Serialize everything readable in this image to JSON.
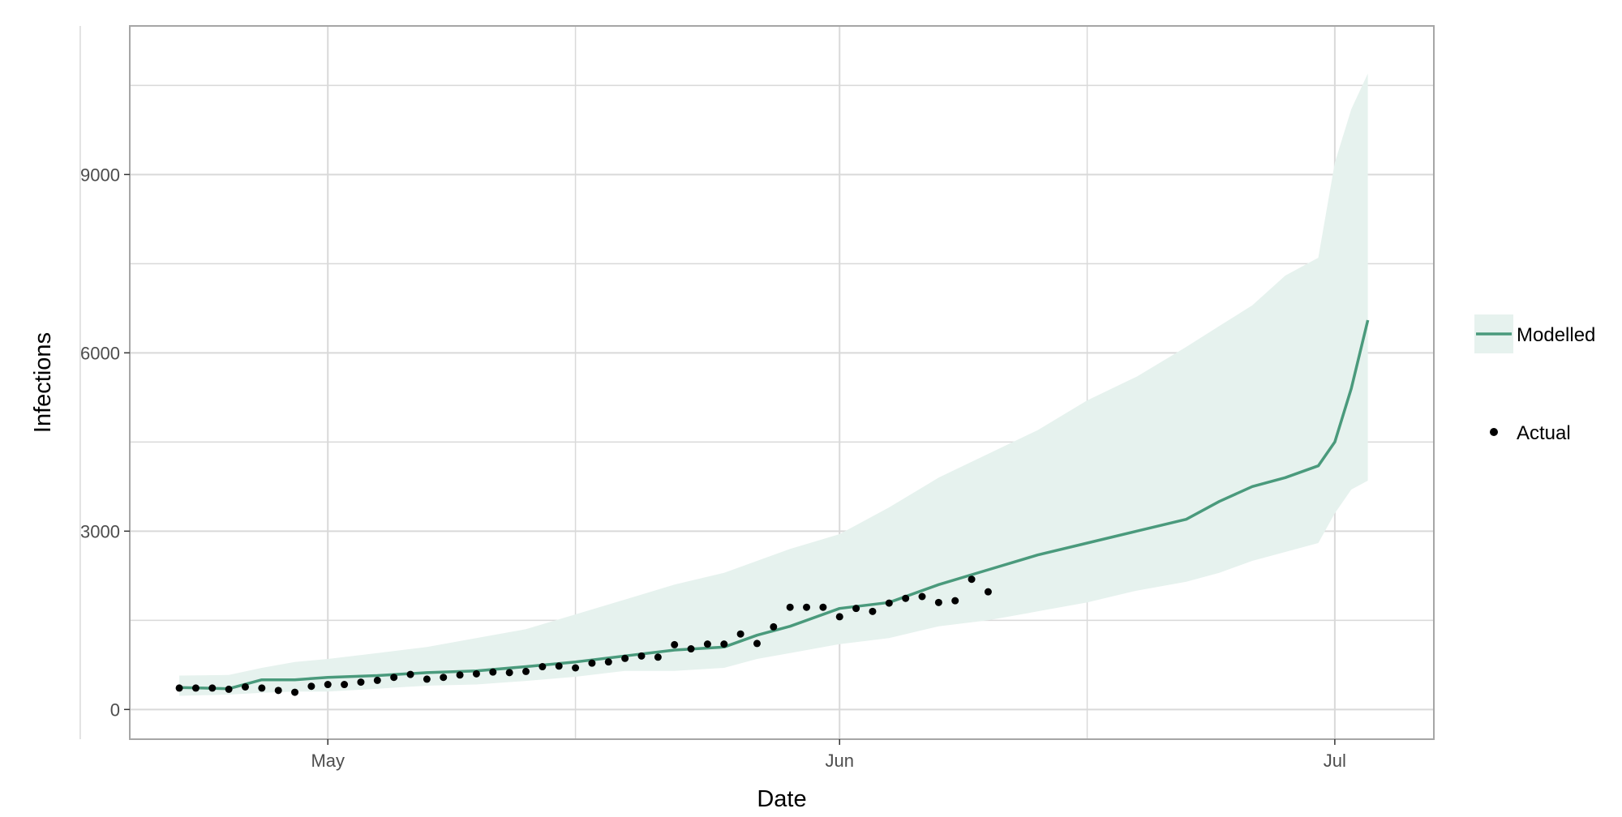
{
  "chart_data": {
    "type": "line",
    "title": "",
    "xlabel": "Date",
    "ylabel": "Infections",
    "x_type": "date",
    "x_range": [
      "2020-04-19",
      "2020-07-07"
    ],
    "x_ticks": [
      {
        "date": "2020-05-01",
        "label": "May"
      },
      {
        "date": "2020-06-01",
        "label": "Jun"
      },
      {
        "date": "2020-07-01",
        "label": "Jul"
      }
    ],
    "x_minor_gridlines": [
      "2020-04-16",
      "2020-05-16",
      "2020-06-16"
    ],
    "ylim": [
      -500,
      11500
    ],
    "y_ticks": [
      0,
      3000,
      6000,
      9000
    ],
    "y_minor_gridlines": [
      1500,
      4500,
      7500,
      10500
    ],
    "grid": true,
    "legend_position": "right",
    "colors": {
      "line": "#4a9a7c",
      "band": "#e6f2ee",
      "points": "#000000",
      "grid": "#d9d9d9",
      "panel_border": "#a6a6a6",
      "legend_key_bg": "#e6f2ee"
    },
    "legend": [
      {
        "label": "Modelled",
        "kind": "line-band"
      },
      {
        "label": "Actual",
        "kind": "point"
      }
    ],
    "series": [
      {
        "name": "Modelled",
        "kind": "line",
        "x": [
          "2020-04-22",
          "2020-04-25",
          "2020-04-27",
          "2020-04-29",
          "2020-05-01",
          "2020-05-04",
          "2020-05-07",
          "2020-05-10",
          "2020-05-13",
          "2020-05-16",
          "2020-05-19",
          "2020-05-22",
          "2020-05-25",
          "2020-05-27",
          "2020-05-29",
          "2020-06-01",
          "2020-06-04",
          "2020-06-07",
          "2020-06-10",
          "2020-06-13",
          "2020-06-16",
          "2020-06-19",
          "2020-06-22",
          "2020-06-24",
          "2020-06-26",
          "2020-06-28",
          "2020-06-30",
          "2020-07-01",
          "2020-07-02",
          "2020-07-03"
        ],
        "values": [
          370,
          350,
          500,
          500,
          540,
          570,
          620,
          650,
          720,
          800,
          900,
          1000,
          1050,
          1250,
          1400,
          1700,
          1800,
          2100,
          2350,
          2600,
          2800,
          3000,
          3200,
          3500,
          3750,
          3900,
          4100,
          4500,
          5400,
          6550
        ]
      },
      {
        "name": "Modelled",
        "kind": "band",
        "x": [
          "2020-04-22",
          "2020-04-25",
          "2020-04-27",
          "2020-04-29",
          "2020-05-01",
          "2020-05-04",
          "2020-05-07",
          "2020-05-10",
          "2020-05-13",
          "2020-05-16",
          "2020-05-19",
          "2020-05-22",
          "2020-05-25",
          "2020-05-27",
          "2020-05-29",
          "2020-06-01",
          "2020-06-04",
          "2020-06-07",
          "2020-06-10",
          "2020-06-13",
          "2020-06-16",
          "2020-06-19",
          "2020-06-22",
          "2020-06-24",
          "2020-06-26",
          "2020-06-28",
          "2020-06-30",
          "2020-07-01",
          "2020-07-02",
          "2020-07-03"
        ],
        "lower": [
          230,
          250,
          280,
          300,
          300,
          350,
          400,
          420,
          480,
          550,
          650,
          650,
          700,
          850,
          950,
          1100,
          1200,
          1400,
          1500,
          1650,
          1800,
          2000,
          2150,
          2300,
          2500,
          2650,
          2800,
          3300,
          3700,
          3850
        ],
        "upper": [
          570,
          580,
          700,
          800,
          850,
          950,
          1050,
          1200,
          1350,
          1600,
          1850,
          2100,
          2300,
          2500,
          2700,
          2950,
          3400,
          3900,
          4300,
          4700,
          5200,
          5600,
          6100,
          6450,
          6800,
          7300,
          7600,
          9200,
          10100,
          10700
        ]
      },
      {
        "name": "Actual",
        "kind": "points",
        "x": [
          "2020-04-22",
          "2020-04-23",
          "2020-04-24",
          "2020-04-25",
          "2020-04-26",
          "2020-04-27",
          "2020-04-28",
          "2020-04-29",
          "2020-04-30",
          "2020-05-01",
          "2020-05-02",
          "2020-05-03",
          "2020-05-04",
          "2020-05-05",
          "2020-05-06",
          "2020-05-07",
          "2020-05-08",
          "2020-05-09",
          "2020-05-10",
          "2020-05-11",
          "2020-05-12",
          "2020-05-13",
          "2020-05-14",
          "2020-05-15",
          "2020-05-16",
          "2020-05-17",
          "2020-05-18",
          "2020-05-19",
          "2020-05-20",
          "2020-05-21",
          "2020-05-22",
          "2020-05-23",
          "2020-05-24",
          "2020-05-25",
          "2020-05-26",
          "2020-05-27",
          "2020-05-28",
          "2020-05-29",
          "2020-05-30",
          "2020-05-31",
          "2020-06-01",
          "2020-06-02",
          "2020-06-03",
          "2020-06-04",
          "2020-06-05",
          "2020-06-06",
          "2020-06-07",
          "2020-06-08",
          "2020-06-09",
          "2020-06-10"
        ],
        "values": [
          360,
          360,
          360,
          340,
          380,
          360,
          320,
          290,
          390,
          420,
          420,
          460,
          490,
          540,
          590,
          510,
          540,
          580,
          600,
          630,
          620,
          640,
          720,
          730,
          700,
          780,
          800,
          860,
          900,
          880,
          1090,
          1020,
          1100,
          1100,
          1270,
          1110,
          1390,
          1720,
          1720,
          1720,
          1560,
          1700,
          1650,
          1790,
          1870,
          1900,
          1800,
          1830,
          2190,
          1980
        ]
      }
    ]
  }
}
